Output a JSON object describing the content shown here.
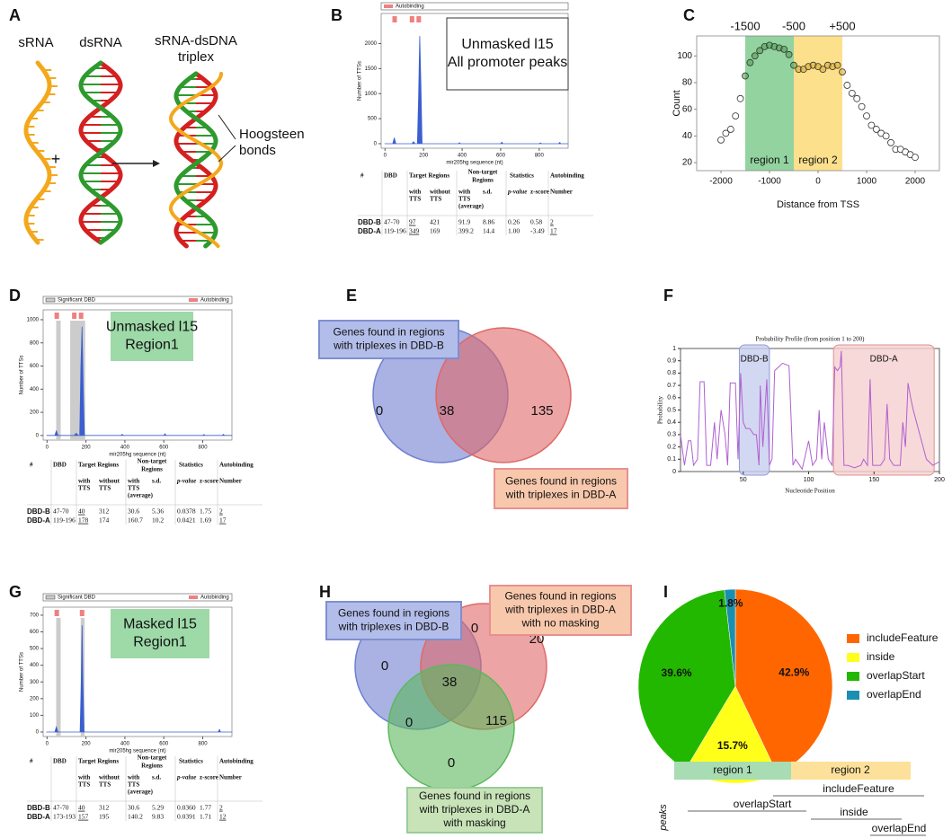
{
  "panel_labels": [
    "A",
    "B",
    "C",
    "D",
    "E",
    "F",
    "G",
    "H",
    "I"
  ],
  "diagram_a": {
    "labels": {
      "srna": "sRNA",
      "dsrna": "dsRNA",
      "triplex": [
        "sRNA-dsDNA",
        "triplex"
      ],
      "plus": "+",
      "hoogsteen": [
        "Hoogsteen",
        "bonds"
      ]
    }
  },
  "chart_data": [
    {
      "type": "area",
      "annotation": [
        "Unmasked l15",
        "All promoter peaks"
      ],
      "annotation_color": "#ffffff",
      "annotation_border": "#333333",
      "autobinding_label": "Autobinding",
      "autobinding_color": "#f08080",
      "autobinding_x": [
        50,
        140,
        175
      ],
      "x_label": "mir205hg sequence (nt)",
      "y_label": "Number of TTSs",
      "color": "#3b5fd0",
      "x": [
        0,
        40,
        48,
        56,
        140,
        148,
        156,
        168,
        174,
        180,
        186,
        192,
        380,
        386,
        392,
        600,
        606,
        612,
        800,
        806,
        812,
        900,
        906,
        912,
        950
      ],
      "values": [
        0,
        0,
        120,
        0,
        0,
        40,
        0,
        0,
        900,
        2150,
        1200,
        0,
        0,
        20,
        0,
        0,
        30,
        0,
        0,
        15,
        0,
        0,
        25,
        0,
        0
      ],
      "xlim": [
        -20,
        950
      ],
      "ylim": [
        -90,
        2600
      ],
      "xticks": [
        0,
        200,
        400,
        600,
        800
      ],
      "yticks": [
        0,
        500,
        1000,
        1500,
        2000
      ]
    },
    {
      "type": "scatter",
      "x_label": "Distance from TSS",
      "y_label": "Count",
      "x": [
        -2000,
        -1900,
        -1800,
        -1700,
        -1600,
        -1500,
        -1400,
        -1300,
        -1200,
        -1100,
        -1000,
        -900,
        -800,
        -700,
        -600,
        -500,
        -400,
        -300,
        -200,
        -100,
        0,
        100,
        200,
        300,
        400,
        500,
        600,
        700,
        800,
        900,
        1000,
        1100,
        1200,
        1300,
        1400,
        1500,
        1600,
        1700,
        1800,
        1900,
        2000
      ],
      "values": [
        37,
        42,
        45,
        55,
        68,
        85,
        95,
        100,
        104,
        107,
        108,
        107,
        106,
        105,
        101,
        93,
        90,
        90,
        92,
        93,
        92,
        90,
        93,
        92,
        93,
        88,
        78,
        72,
        68,
        62,
        55,
        48,
        45,
        42,
        40,
        35,
        30,
        30,
        28,
        26,
        24
      ],
      "color": "#333333",
      "regions": [
        {
          "label": "region 1",
          "from": -1500,
          "to": -500,
          "color": "#92d3a0",
          "point_color": "#4f9a4f"
        },
        {
          "label": "region 2",
          "from": -500,
          "to": 500,
          "color": "#fde08c",
          "point_color": "#d4a52a"
        }
      ],
      "top_ticks": [
        -1500,
        -500,
        {
          "value": 500,
          "label": "+500"
        }
      ],
      "xlim": [
        -2500,
        2500
      ],
      "ylim": [
        14,
        115
      ],
      "xticks": [
        -2000,
        -1000,
        0,
        1000,
        2000
      ],
      "yticks": [
        20,
        40,
        60,
        80,
        100
      ]
    },
    {
      "type": "area",
      "annotation": [
        "Unmasked l15",
        "Region1"
      ],
      "annotation_color": "#9ed9a8",
      "significant_label": "Significant DBD",
      "significant_color": "#cccccc",
      "significant_regions": [
        [
          47,
          70
        ],
        [
          119,
          196
        ]
      ],
      "autobinding_label": "Autobinding",
      "autobinding_color": "#f08080",
      "autobinding_x": [
        50,
        140,
        175
      ],
      "x_label": "mir205hg sequence (nt)",
      "y_label": "Number of TTSs",
      "color": "#3b5fd0",
      "x": [
        0,
        40,
        48,
        56,
        140,
        150,
        160,
        168,
        174,
        180,
        186,
        192,
        380,
        386,
        392,
        600,
        606,
        612,
        800,
        806,
        812,
        900,
        906,
        912,
        950
      ],
      "values": [
        0,
        0,
        40,
        0,
        0,
        20,
        0,
        0,
        600,
        940,
        400,
        0,
        0,
        10,
        0,
        0,
        15,
        0,
        0,
        8,
        0,
        0,
        10,
        0,
        0
      ],
      "xlim": [
        -20,
        950
      ],
      "ylim": [
        -40,
        1085
      ],
      "xticks": [
        0,
        200,
        400,
        600,
        800
      ],
      "yticks": [
        0,
        200,
        400,
        600,
        800,
        1000
      ]
    },
    {
      "type": "line",
      "title": "Probability Profile (from position 1 to 200)",
      "x_label": "Nucleotide Position",
      "y_label": "Probability",
      "color": "#b060d0",
      "regions": [
        {
          "label": "DBD-B",
          "from": 47,
          "to": 70,
          "color": "#c8ceef",
          "border": "#8f9ad8"
        },
        {
          "label": "DBD-A",
          "from": 119,
          "to": 196,
          "color": "#f6cfcf",
          "border": "#e09090"
        }
      ],
      "x": [
        2,
        5,
        8,
        10,
        12,
        15,
        17,
        20,
        22,
        25,
        28,
        30,
        33,
        36,
        38,
        40,
        44,
        46,
        48,
        50,
        52,
        55,
        58,
        60,
        62,
        63,
        65,
        68,
        70,
        72,
        74,
        77,
        80,
        85,
        88,
        90,
        95,
        100,
        103,
        106,
        108,
        110,
        112,
        115,
        118,
        120,
        122,
        124,
        125,
        127,
        130,
        135,
        140,
        142,
        145,
        147,
        149,
        152,
        155,
        158,
        160,
        162,
        165,
        170,
        172,
        174,
        176,
        178,
        180,
        185,
        190,
        195,
        200
      ],
      "values": [
        0.3,
        0.05,
        0.25,
        0.25,
        0.05,
        0.1,
        0.73,
        0.73,
        0.05,
        0.05,
        0.4,
        0.1,
        0.5,
        0.3,
        0.05,
        0.72,
        0.72,
        0.1,
        0.8,
        0.4,
        0.35,
        0.35,
        0.3,
        0.3,
        0.05,
        0.7,
        0.2,
        0.75,
        0.05,
        0.1,
        0.82,
        0.85,
        0.88,
        0.86,
        0.05,
        0.1,
        0.02,
        0.25,
        0.05,
        0.1,
        0.5,
        0.1,
        0.4,
        0.1,
        0.05,
        0.85,
        0.82,
        0.85,
        0.98,
        0.05,
        0.05,
        0.03,
        0.05,
        0.1,
        0.05,
        0.75,
        0.05,
        0.05,
        0.05,
        0.1,
        0.55,
        0.1,
        0.05,
        0.05,
        0.4,
        0.2,
        0.72,
        0.6,
        0.5,
        0.3,
        0.1,
        0.05,
        0.08
      ],
      "xlim": [
        2,
        200
      ],
      "ylim": [
        0,
        1
      ],
      "xticks": [
        50,
        100,
        150,
        200
      ],
      "yticks": [
        0,
        0.1,
        0.2,
        0.3,
        0.4,
        0.5,
        0.6,
        0.7,
        0.8,
        0.9,
        1
      ]
    },
    {
      "type": "area",
      "annotation": [
        "Masked l15",
        "Region1"
      ],
      "annotation_color": "#9ed9a8",
      "significant_label": "Significant DBD",
      "significant_color": "#cccccc",
      "significant_regions": [
        [
          47,
          70
        ],
        [
          173,
          193
        ]
      ],
      "autobinding_label": "Autobinding",
      "autobinding_color": "#f08080",
      "autobinding_x": [
        50,
        180
      ],
      "x_label": "mir205hg sequence (nt)",
      "y_label": "Number of TTSs",
      "color": "#3b5fd0",
      "x": [
        0,
        40,
        48,
        56,
        170,
        176,
        180,
        184,
        190,
        880,
        886,
        892,
        950
      ],
      "values": [
        0,
        0,
        30,
        0,
        0,
        300,
        640,
        300,
        0,
        0,
        15,
        0,
        0
      ],
      "xlim": [
        -20,
        950
      ],
      "ylim": [
        -27,
        748
      ],
      "xticks": [
        0,
        200,
        400,
        600,
        800
      ],
      "yticks": [
        0,
        100,
        200,
        300,
        400,
        500,
        600,
        700
      ]
    },
    {
      "type": "pie",
      "categories": [
        "includeFeature",
        "inside",
        "overlapStart",
        "overlapEnd"
      ],
      "values": [
        42.9,
        15.7,
        39.6,
        1.8
      ],
      "value_labels": [
        "42.9%",
        "15.7%",
        "39.6%",
        "1.8%"
      ],
      "colors": [
        "#ff6600",
        "#ffff1a",
        "#22b800",
        "#1a8fb0"
      ]
    }
  ],
  "tables": [
    {
      "headers": [
        [
          "#"
        ],
        [
          "DBD"
        ],
        [
          "Target Regions"
        ],
        [
          "Non-target",
          "Regions"
        ],
        [
          "Statistics"
        ],
        [
          "Autobinding"
        ]
      ],
      "subheaders": [
        [
          "with",
          "TTS"
        ],
        [
          "without",
          "TTS"
        ],
        [
          "with",
          "TTS",
          "(average)"
        ],
        [
          "s.d."
        ],
        [
          "p-value"
        ],
        [
          "z-score"
        ],
        [
          "Number"
        ]
      ],
      "rows": [
        [
          "DBD-B",
          "47-70",
          "97",
          "421",
          "91.9",
          "8.86",
          "0.26",
          "0.58",
          "2"
        ],
        [
          "DBD-A",
          "119-196",
          "349",
          "169",
          "399.2",
          "14.4",
          "1.00",
          "-3.49",
          "17"
        ]
      ]
    },
    {
      "headers": [
        [
          "#"
        ],
        [
          "DBD"
        ],
        [
          "Target Regions"
        ],
        [
          "Non-target",
          "Regions"
        ],
        [
          "Statistics"
        ],
        [
          "Autobinding"
        ]
      ],
      "subheaders": [
        [
          "with",
          "TTS"
        ],
        [
          "without",
          "TTS"
        ],
        [
          "with",
          "TTS",
          "(average)"
        ],
        [
          "s.d."
        ],
        [
          "p-value"
        ],
        [
          "z-score"
        ],
        [
          "Number"
        ]
      ],
      "p_value_color": "#e00000",
      "rows": [
        [
          "DBD-B",
          "47-70",
          "40",
          "312",
          "30.6",
          "5.36",
          "0.0378",
          "1.75",
          "2"
        ],
        [
          "DBD-A",
          "119-196",
          "178",
          "174",
          "160.7",
          "10.2",
          "0.0421",
          "1.69",
          "17"
        ]
      ]
    },
    {
      "headers": [
        [
          "#"
        ],
        [
          "DBD"
        ],
        [
          "Target Regions"
        ],
        [
          "Non-target",
          "Regions"
        ],
        [
          "Statistics"
        ],
        [
          "Autobinding"
        ]
      ],
      "subheaders": [
        [
          "with",
          "TTS"
        ],
        [
          "without",
          "TTS"
        ],
        [
          "with",
          "TTS",
          "(average)"
        ],
        [
          "s.d."
        ],
        [
          "p-value"
        ],
        [
          "z-score"
        ],
        [
          "Number"
        ]
      ],
      "p_value_color": "#e00000",
      "rows": [
        [
          "DBD-B",
          "47-70",
          "40",
          "312",
          "30.6",
          "5.29",
          "0.0360",
          "1.77",
          "2"
        ],
        [
          "DBD-A",
          "173-193",
          "157",
          "195",
          "140.2",
          "9.83",
          "0.0391",
          "1.71",
          "12"
        ]
      ]
    }
  ],
  "venn_e": {
    "sets": [
      {
        "label": [
          "Genes found in regions",
          "with triplexes in DBD-B"
        ],
        "color": "#6f7fd0",
        "box_color": "#b3bdea",
        "border_color": "#7f8fd0"
      },
      {
        "label": [
          "Genes found in regions",
          "with triplexes in DBD-A"
        ],
        "color": "#e06868",
        "box_color": "#f8c8ac",
        "border_color": "#e89090"
      }
    ],
    "counts": [
      0,
      38,
      135
    ]
  },
  "venn_h": {
    "sets": [
      {
        "label": [
          "Genes found in regions",
          "with triplexes in DBD-B"
        ],
        "color": "#6f7fd0",
        "box_color": "#b3bdea",
        "border_color": "#7f8fd0"
      },
      {
        "label": [
          "Genes found in regions",
          "with triplexes in DBD-A",
          "with no masking"
        ],
        "color": "#e06868",
        "box_color": "#f8c8ac",
        "border_color": "#e89090"
      },
      {
        "label": [
          "Genes found in regions",
          "with triplexes in DBD-A",
          "with masking"
        ],
        "color": "#5cb85c",
        "box_color": "#c8e3b8",
        "border_color": "#99cc99"
      }
    ],
    "counts": [
      0,
      0,
      20,
      38,
      0,
      115,
      0
    ]
  },
  "region_diagram": {
    "regions": [
      "region 1",
      "region 2"
    ],
    "axis_label": "peaks",
    "peaks": [
      "includeFeature",
      "overlapStart",
      "inside",
      "overlapEnd"
    ]
  }
}
